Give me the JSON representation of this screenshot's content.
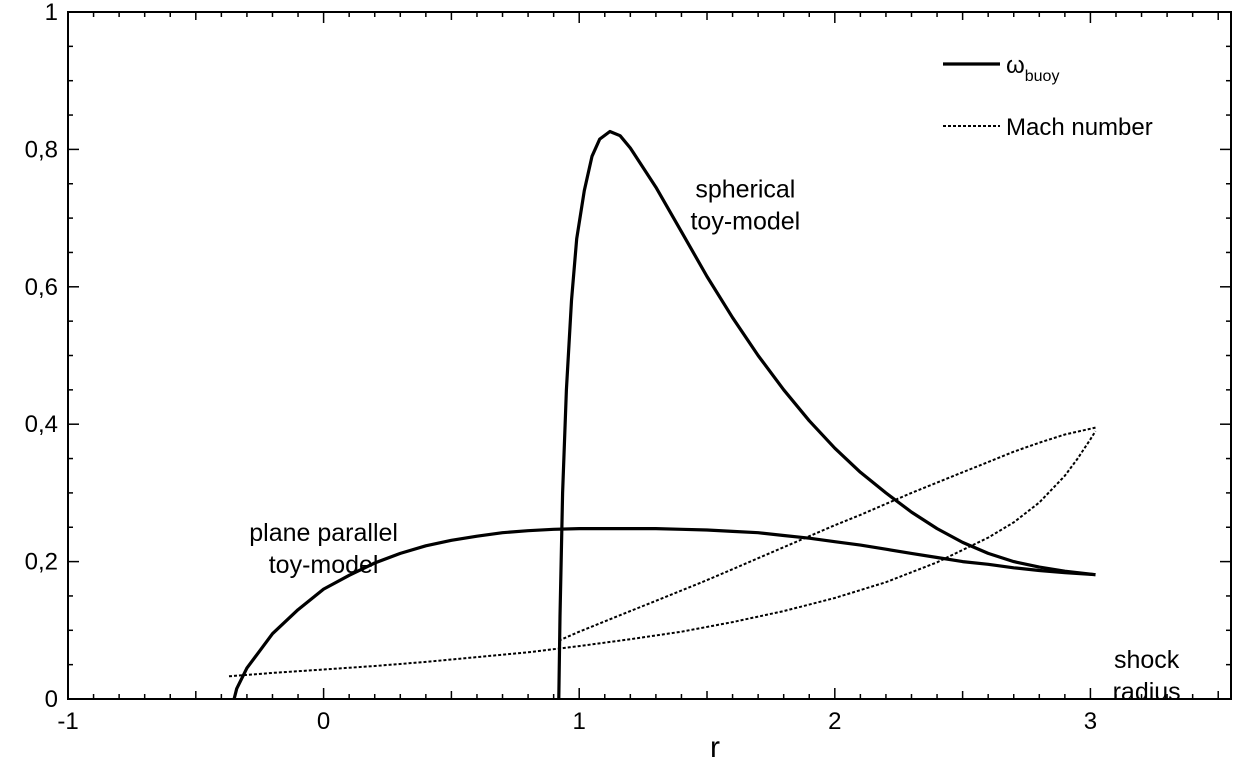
{
  "chart_data": {
    "type": "line",
    "xlabel": "r",
    "ylabel": "",
    "xlim": [
      -1,
      3.55
    ],
    "ylim": [
      0,
      1
    ],
    "grid": false,
    "legend_placement": "top-right",
    "x_ticks": [
      {
        "value": -1,
        "label": "-1"
      },
      {
        "value": 0,
        "label": "0"
      },
      {
        "value": 1,
        "label": "1"
      },
      {
        "value": 2,
        "label": "2"
      },
      {
        "value": 3,
        "label": "3"
      }
    ],
    "y_ticks": [
      {
        "value": 0,
        "label": "0"
      },
      {
        "value": 0.2,
        "label": "0,2"
      },
      {
        "value": 0.4,
        "label": "0,4"
      },
      {
        "value": 0.6,
        "label": "0,6"
      },
      {
        "value": 0.8,
        "label": "0,8"
      },
      {
        "value": 1,
        "label": "1"
      }
    ],
    "legend": [
      {
        "key": "buoy",
        "label": "ω",
        "sub": "buoy",
        "style": "solid"
      },
      {
        "key": "mach",
        "label": "Mach number",
        "style": "dotted"
      }
    ],
    "series": [
      {
        "key": "buoy",
        "group": "spherical",
        "style": "solid",
        "points": [
          [
            0.92,
            0
          ],
          [
            0.925,
            0.12
          ],
          [
            0.935,
            0.3
          ],
          [
            0.95,
            0.45
          ],
          [
            0.97,
            0.58
          ],
          [
            0.99,
            0.67
          ],
          [
            1.02,
            0.74
          ],
          [
            1.05,
            0.79
          ],
          [
            1.08,
            0.815
          ],
          [
            1.12,
            0.826
          ],
          [
            1.16,
            0.82
          ],
          [
            1.2,
            0.802
          ],
          [
            1.3,
            0.745
          ],
          [
            1.4,
            0.68
          ],
          [
            1.5,
            0.615
          ],
          [
            1.6,
            0.555
          ],
          [
            1.7,
            0.5
          ],
          [
            1.8,
            0.45
          ],
          [
            1.9,
            0.405
          ],
          [
            2.0,
            0.365
          ],
          [
            2.1,
            0.33
          ],
          [
            2.2,
            0.3
          ],
          [
            2.3,
            0.272
          ],
          [
            2.4,
            0.248
          ],
          [
            2.5,
            0.228
          ],
          [
            2.6,
            0.212
          ],
          [
            2.7,
            0.2
          ],
          [
            2.8,
            0.192
          ],
          [
            2.9,
            0.186
          ],
          [
            3.02,
            0.181
          ]
        ]
      },
      {
        "key": "buoy",
        "group": "plane-parallel",
        "style": "solid",
        "points": [
          [
            -0.35,
            0
          ],
          [
            -0.34,
            0.015
          ],
          [
            -0.3,
            0.045
          ],
          [
            -0.25,
            0.07
          ],
          [
            -0.2,
            0.095
          ],
          [
            -0.1,
            0.13
          ],
          [
            0.0,
            0.16
          ],
          [
            0.1,
            0.18
          ],
          [
            0.2,
            0.198
          ],
          [
            0.3,
            0.212
          ],
          [
            0.4,
            0.223
          ],
          [
            0.5,
            0.231
          ],
          [
            0.6,
            0.237
          ],
          [
            0.7,
            0.242
          ],
          [
            0.8,
            0.245
          ],
          [
            0.9,
            0.247
          ],
          [
            1.0,
            0.248
          ],
          [
            1.1,
            0.248
          ],
          [
            1.2,
            0.248
          ],
          [
            1.3,
            0.248
          ],
          [
            1.4,
            0.247
          ],
          [
            1.5,
            0.246
          ],
          [
            1.6,
            0.244
          ],
          [
            1.7,
            0.242
          ],
          [
            1.8,
            0.238
          ],
          [
            1.9,
            0.234
          ],
          [
            2.0,
            0.229
          ],
          [
            2.1,
            0.224
          ],
          [
            2.2,
            0.218
          ],
          [
            2.3,
            0.212
          ],
          [
            2.4,
            0.206
          ],
          [
            2.5,
            0.2
          ],
          [
            2.6,
            0.196
          ],
          [
            2.7,
            0.191
          ],
          [
            2.8,
            0.187
          ],
          [
            2.9,
            0.184
          ],
          [
            3.02,
            0.181
          ]
        ]
      },
      {
        "key": "mach",
        "group": "plane-parallel",
        "style": "dotted",
        "points": [
          [
            -0.37,
            0.033
          ],
          [
            -0.2,
            0.038
          ],
          [
            0.0,
            0.043
          ],
          [
            0.2,
            0.048
          ],
          [
            0.4,
            0.054
          ],
          [
            0.6,
            0.061
          ],
          [
            0.8,
            0.068
          ],
          [
            1.0,
            0.077
          ],
          [
            1.2,
            0.087
          ],
          [
            1.4,
            0.098
          ],
          [
            1.6,
            0.112
          ],
          [
            1.8,
            0.128
          ],
          [
            2.0,
            0.147
          ],
          [
            2.2,
            0.17
          ],
          [
            2.4,
            0.199
          ],
          [
            2.6,
            0.235
          ],
          [
            2.7,
            0.257
          ],
          [
            2.8,
            0.286
          ],
          [
            2.9,
            0.325
          ],
          [
            2.95,
            0.35
          ],
          [
            3.0,
            0.378
          ],
          [
            3.02,
            0.39
          ]
        ]
      },
      {
        "key": "mach",
        "group": "spherical",
        "style": "dotted",
        "points": [
          [
            0.92,
            0.085
          ],
          [
            1.0,
            0.098
          ],
          [
            1.1,
            0.113
          ],
          [
            1.2,
            0.128
          ],
          [
            1.3,
            0.143
          ],
          [
            1.4,
            0.158
          ],
          [
            1.5,
            0.173
          ],
          [
            1.6,
            0.189
          ],
          [
            1.7,
            0.205
          ],
          [
            1.8,
            0.221
          ],
          [
            1.9,
            0.237
          ],
          [
            2.0,
            0.253
          ],
          [
            2.1,
            0.268
          ],
          [
            2.2,
            0.284
          ],
          [
            2.3,
            0.3
          ],
          [
            2.4,
            0.315
          ],
          [
            2.5,
            0.33
          ],
          [
            2.6,
            0.345
          ],
          [
            2.7,
            0.36
          ],
          [
            2.8,
            0.373
          ],
          [
            2.9,
            0.385
          ],
          [
            3.02,
            0.395
          ]
        ]
      }
    ],
    "annotations": [
      {
        "key": "spherical",
        "lines": [
          "spherical",
          "toy-model"
        ],
        "x": 1.65,
        "y": 0.73
      },
      {
        "key": "plane",
        "lines": [
          "plane parallel",
          "toy-model"
        ],
        "x": 0.0,
        "y": 0.23
      },
      {
        "key": "shock",
        "lines": [
          "shock",
          "radius"
        ],
        "x": 3.22,
        "y": 0.045
      }
    ]
  }
}
